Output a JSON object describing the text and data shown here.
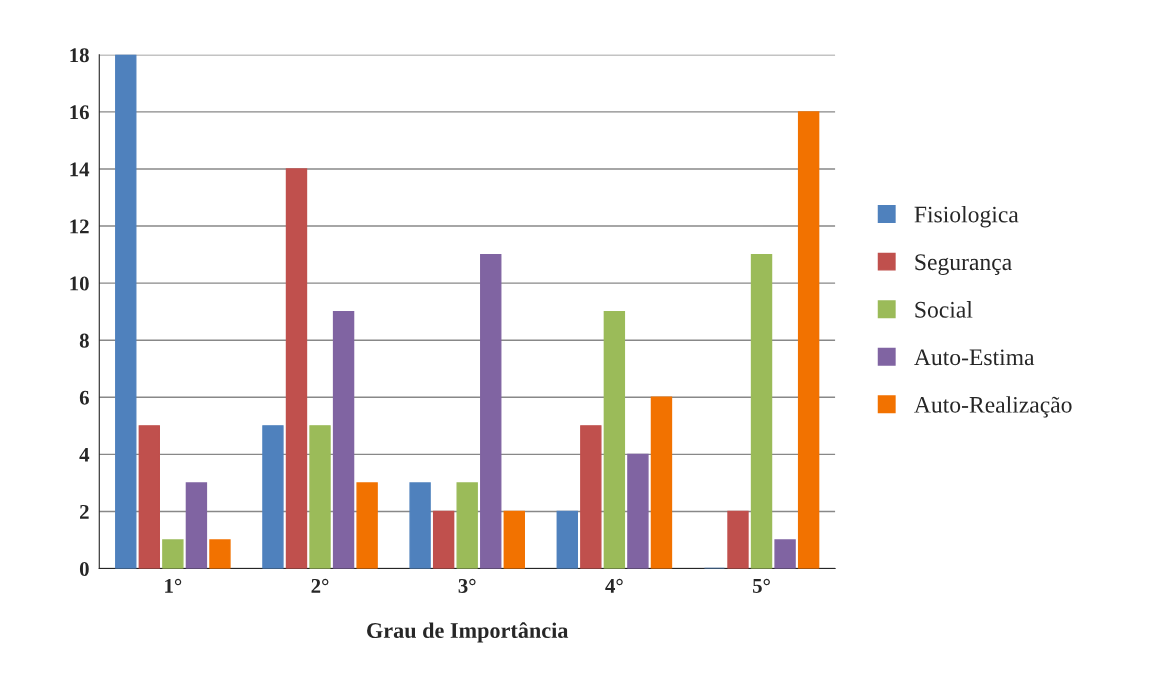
{
  "chart_data": {
    "type": "bar",
    "xlabel": "Grau de Importância",
    "categories": [
      "1°",
      "2°",
      "3°",
      "4°",
      "5°"
    ],
    "series": [
      {
        "name": "Fisiologica",
        "color": "#4f81bd",
        "values": [
          18,
          5,
          3,
          2,
          0
        ]
      },
      {
        "name": "Segurança",
        "color": "#c0504d",
        "values": [
          5,
          14,
          2,
          5,
          2
        ]
      },
      {
        "name": "Social",
        "color": "#9bbb59",
        "values": [
          1,
          5,
          3,
          9,
          11
        ]
      },
      {
        "name": "Auto-Estima",
        "color": "#8064a2",
        "values": [
          3,
          9,
          11,
          4,
          1
        ]
      },
      {
        "name": "Auto-Realização",
        "color": "#f27200",
        "values": [
          1,
          3,
          2,
          6,
          16
        ]
      }
    ],
    "ylim": [
      0,
      18
    ],
    "yticks": [
      0,
      2,
      4,
      6,
      8,
      10,
      12,
      14,
      16,
      18
    ],
    "grid": "y",
    "legend": "right"
  }
}
